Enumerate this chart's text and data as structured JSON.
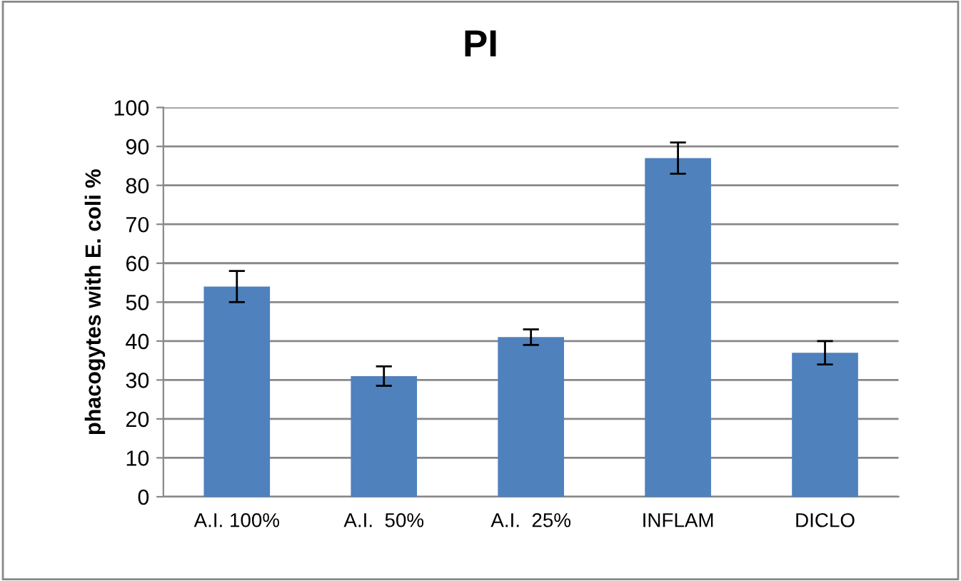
{
  "chart_data": {
    "type": "bar",
    "title": "PI",
    "ylabel": "phacogytes with E. coli %",
    "categories": [
      "A.I. 100%",
      "A.I.  50%",
      "A.I.  25%",
      "INFLAM",
      "DICLO"
    ],
    "values": [
      54,
      31,
      41,
      87,
      37
    ],
    "errors": [
      4,
      2.5,
      2,
      4,
      3
    ],
    "color": "#4f81bd",
    "ylim": [
      0,
      100
    ],
    "yticks": [
      0,
      10,
      20,
      30,
      40,
      50,
      60,
      70,
      80,
      90,
      100
    ],
    "grid": "y"
  }
}
